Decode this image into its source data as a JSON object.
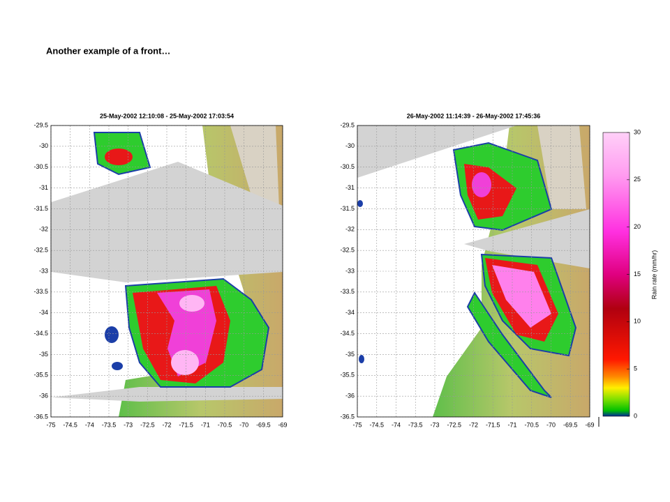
{
  "slide": {
    "title": "Another example of a front…"
  },
  "maps": [
    {
      "title": "25-May-2002 12:10:08 - 25-May-2002 17:03:54",
      "xlim": [
        -75,
        -69
      ],
      "ylim": [
        -36.5,
        -29.5
      ],
      "xticks": [
        -75,
        -74.5,
        -74,
        -73.5,
        -73,
        -72.5,
        -72,
        -71.5,
        -71,
        -70.5,
        -70,
        -69.5,
        -69
      ],
      "yticks": [
        -29.5,
        -30,
        -30.5,
        -31,
        -31.5,
        -32,
        -32.5,
        -33,
        -33.5,
        -34,
        -34.5,
        -35,
        -35.5,
        -36,
        -36.5
      ]
    },
    {
      "title": "26-May-2002 11:14:39 - 26-May-2002 17:45:36",
      "xlim": [
        -75,
        -69
      ],
      "ylim": [
        -36.5,
        -29.5
      ],
      "xticks": [
        -75,
        -74.5,
        -74,
        -73.5,
        -73,
        -72.5,
        -72,
        -71.5,
        -71,
        -70.5,
        -70,
        -69.5,
        -69
      ],
      "yticks": [
        -29.5,
        -30,
        -30.5,
        -31,
        -31.5,
        -32,
        -32.5,
        -33,
        -33.5,
        -34,
        -34.5,
        -35,
        -35.5,
        -36,
        -36.5
      ]
    }
  ],
  "colorbar": {
    "label": "Rain rate (mm/hr)",
    "lim": [
      0,
      30
    ],
    "ticks": [
      0,
      5,
      10,
      15,
      20,
      25,
      30
    ]
  }
}
